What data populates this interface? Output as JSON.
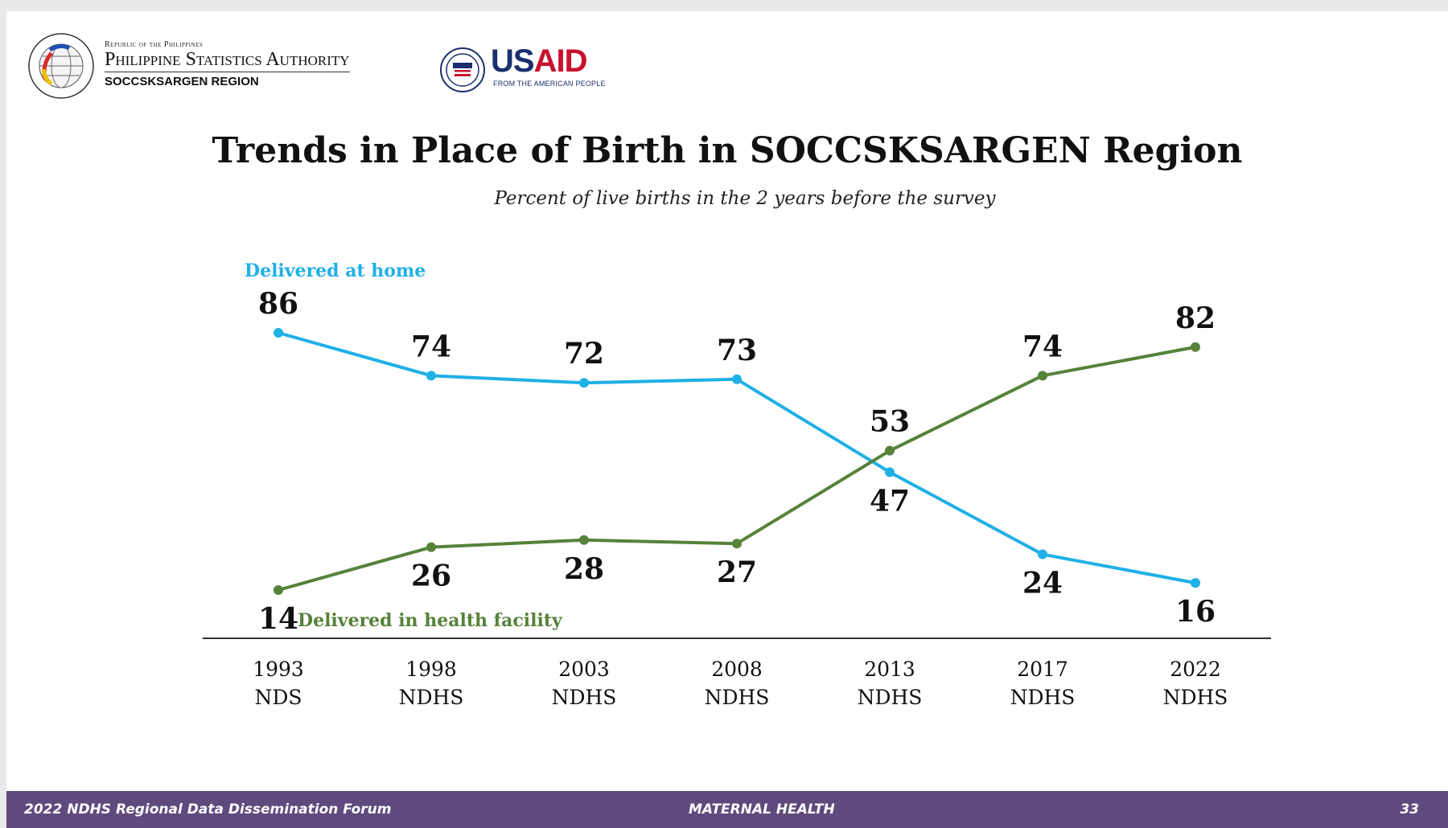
{
  "header": {
    "republic": "Republic of the Philippines",
    "agency": "Philippine Statistics Authority",
    "region": "SOCCSKSARGEN REGION",
    "usaid_left": "US",
    "usaid_right": "AID",
    "usaid_tagline": "FROM THE AMERICAN PEOPLE"
  },
  "colors": {
    "home": "#1fb0e6",
    "facility": "#56823a",
    "footer": "#5e4a7d",
    "axis": "#333333"
  },
  "chart_data": {
    "type": "line",
    "title": "Trends in Place of Birth in SOCCSKSARGEN Region",
    "subtitle": "Percent of live births in the 2 years before the survey",
    "categories": [
      [
        "1993",
        "NDS"
      ],
      [
        "1998",
        "NDHS"
      ],
      [
        "2003",
        "NDHS"
      ],
      [
        "2008",
        "NDHS"
      ],
      [
        "2013",
        "NDHS"
      ],
      [
        "2017",
        "NDHS"
      ],
      [
        "2022",
        "NDHS"
      ]
    ],
    "series": [
      {
        "name": "Delivered at home",
        "values": [
          86,
          74,
          72,
          73,
          47,
          24,
          16
        ]
      },
      {
        "name": "Delivered in health facility",
        "values": [
          14,
          26,
          28,
          27,
          53,
          74,
          82
        ]
      }
    ],
    "ylim": [
      0,
      100
    ],
    "grid": false
  },
  "footer": {
    "left": "2022 NDHS Regional Data Dissemination Forum",
    "center": "MATERNAL HEALTH",
    "page": "33"
  }
}
